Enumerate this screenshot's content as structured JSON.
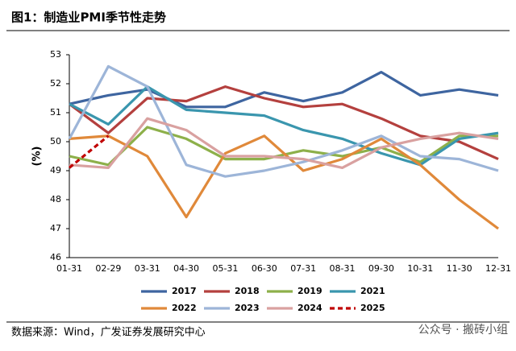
{
  "title": "图1：制造业PMI季节性走势",
  "source": "数据来源：Wind，广发证券发展研究中心",
  "watermark": "公众号 · 搬砖小组",
  "chart_data": {
    "type": "line",
    "y_label": "(%)",
    "categories": [
      "01-31",
      "02-29",
      "03-31",
      "04-30",
      "05-31",
      "06-30",
      "07-31",
      "08-31",
      "09-30",
      "10-31",
      "11-30",
      "12-31"
    ],
    "ylim": [
      46,
      53
    ],
    "yticks": [
      46,
      47,
      48,
      49,
      50,
      51,
      52,
      53
    ],
    "series": [
      {
        "name": "2017",
        "color": "#3e65a0",
        "values": [
          51.3,
          51.6,
          51.8,
          51.2,
          51.2,
          51.7,
          51.4,
          51.7,
          52.4,
          51.6,
          51.8,
          51.6
        ]
      },
      {
        "name": "2018",
        "color": "#b4403e",
        "values": [
          51.3,
          50.3,
          51.5,
          51.4,
          51.9,
          51.5,
          51.2,
          51.3,
          50.8,
          50.2,
          50.0,
          49.4
        ]
      },
      {
        "name": "2019",
        "color": "#8db04a",
        "values": [
          49.5,
          49.2,
          50.5,
          50.1,
          49.4,
          49.4,
          49.7,
          49.5,
          49.8,
          49.3,
          50.2,
          50.2
        ]
      },
      {
        "name": "2021",
        "color": "#3a96ae",
        "values": [
          51.3,
          50.6,
          51.9,
          51.1,
          51.0,
          50.9,
          50.4,
          50.1,
          49.6,
          49.2,
          50.1,
          50.3
        ]
      },
      {
        "name": "2022",
        "color": "#e0893a",
        "values": [
          50.1,
          50.2,
          49.5,
          47.4,
          49.6,
          50.2,
          49.0,
          49.4,
          50.1,
          49.2,
          48.0,
          47.0
        ]
      },
      {
        "name": "2023",
        "color": "#9db5d8",
        "values": [
          50.1,
          52.6,
          51.9,
          49.2,
          48.8,
          49.0,
          49.3,
          49.7,
          50.2,
          49.5,
          49.4,
          49.0
        ]
      },
      {
        "name": "2024",
        "color": "#d9a1a0",
        "values": [
          49.2,
          49.1,
          50.8,
          50.4,
          49.5,
          49.5,
          49.4,
          49.1,
          49.8,
          50.1,
          50.3,
          50.1
        ]
      },
      {
        "name": "2025",
        "color": "#c00000",
        "dashed": true,
        "values": [
          49.1,
          50.2,
          null,
          null,
          null,
          null,
          null,
          null,
          null,
          null,
          null,
          null
        ]
      }
    ]
  }
}
